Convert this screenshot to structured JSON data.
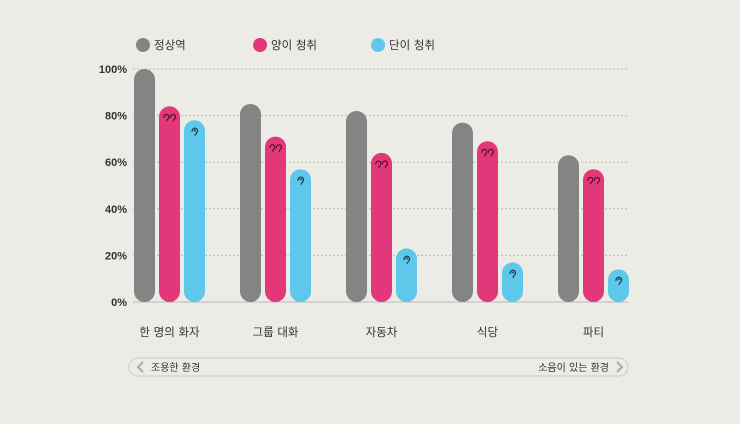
{
  "chart_data": {
    "type": "bar",
    "categories": [
      "한 명의 화자",
      "그룹 대화",
      "자동차",
      "식당",
      "파티"
    ],
    "series": [
      {
        "name": "정상역",
        "color": "#848484",
        "values": [
          100,
          85,
          82,
          77,
          63
        ]
      },
      {
        "name": "양이 청취",
        "color": "#e2387a",
        "values": [
          84,
          71,
          64,
          69,
          57
        ],
        "icon": "double-ear-icon"
      },
      {
        "name": "단이 청취",
        "color": "#5ec8ea",
        "values": [
          78,
          57,
          23,
          17,
          14
        ],
        "icon": "ear-icon"
      }
    ],
    "yticks": [
      "0%",
      "20%",
      "40%",
      "60%",
      "80%",
      "100%"
    ],
    "ylim": [
      0,
      100
    ],
    "grid": true,
    "legend_position": "top"
  },
  "range_indicator": {
    "left_label": "조용한 환경",
    "right_label": "소음이 있는 환경"
  }
}
